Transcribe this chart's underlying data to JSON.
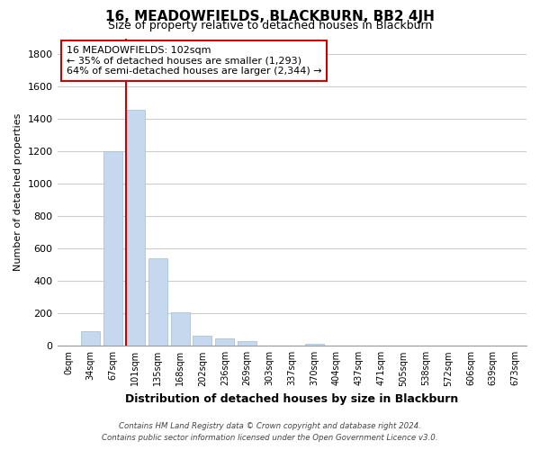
{
  "title": "16, MEADOWFIELDS, BLACKBURN, BB2 4JH",
  "subtitle": "Size of property relative to detached houses in Blackburn",
  "xlabel": "Distribution of detached houses by size in Blackburn",
  "ylabel": "Number of detached properties",
  "bar_labels": [
    "0sqm",
    "34sqm",
    "67sqm",
    "101sqm",
    "135sqm",
    "168sqm",
    "202sqm",
    "236sqm",
    "269sqm",
    "303sqm",
    "337sqm",
    "370sqm",
    "404sqm",
    "437sqm",
    "471sqm",
    "505sqm",
    "538sqm",
    "572sqm",
    "606sqm",
    "639sqm",
    "673sqm"
  ],
  "bar_values": [
    0,
    90,
    1200,
    1460,
    540,
    205,
    65,
    48,
    28,
    0,
    0,
    15,
    0,
    0,
    0,
    0,
    0,
    0,
    0,
    0,
    0
  ],
  "bar_color": "#c5d8ed",
  "bar_edge_color": "#a8c4dc",
  "property_line_index": 3,
  "property_line_color": "#cc0000",
  "annotation_title": "16 MEADOWFIELDS: 102sqm",
  "annotation_line1": "← 35% of detached houses are smaller (1,293)",
  "annotation_line2": "64% of semi-detached houses are larger (2,344) →",
  "ylim": [
    0,
    1900
  ],
  "yticks": [
    0,
    200,
    400,
    600,
    800,
    1000,
    1200,
    1400,
    1600,
    1800
  ],
  "footer_line1": "Contains HM Land Registry data © Crown copyright and database right 2024.",
  "footer_line2": "Contains public sector information licensed under the Open Government Licence v3.0.",
  "background_color": "#ffffff",
  "grid_color": "#cccccc"
}
